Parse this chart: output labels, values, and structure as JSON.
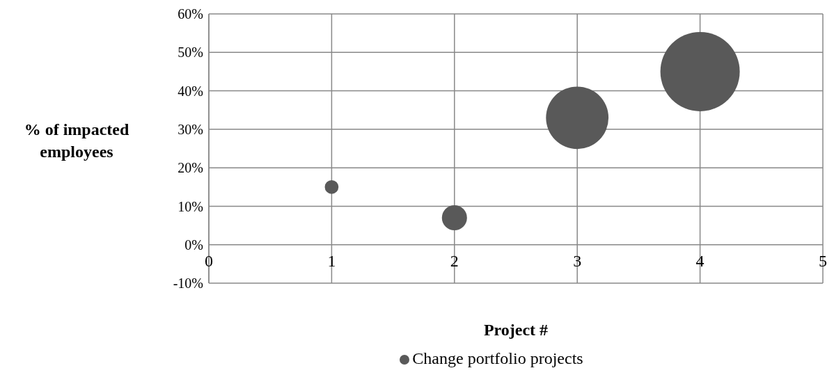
{
  "chart_data": {
    "type": "bubble",
    "xlabel": "Project #",
    "ylabel": "% of impacted employees",
    "x": [
      1,
      2,
      3,
      4
    ],
    "series": [
      {
        "name": "Change portfolio projects",
        "color": "#595959",
        "values": [
          15,
          7,
          33,
          45
        ],
        "sizes": [
          0.03,
          0.1,
          0.62,
          1
        ]
      }
    ],
    "xlim": [
      0,
      5
    ],
    "xticks": [
      0,
      1,
      2,
      3,
      4,
      5
    ],
    "ylim": [
      -10,
      60
    ],
    "yticks": [
      {
        "value": -10,
        "label": "-10%"
      },
      {
        "value": 0,
        "label": "0%"
      },
      {
        "value": 10,
        "label": "10%"
      },
      {
        "value": 20,
        "label": "20%"
      },
      {
        "value": 30,
        "label": "30%"
      },
      {
        "value": 40,
        "label": "40%"
      },
      {
        "value": 50,
        "label": "50%"
      },
      {
        "value": 60,
        "label": "60%"
      }
    ],
    "grid": true,
    "legend": "bottom"
  }
}
